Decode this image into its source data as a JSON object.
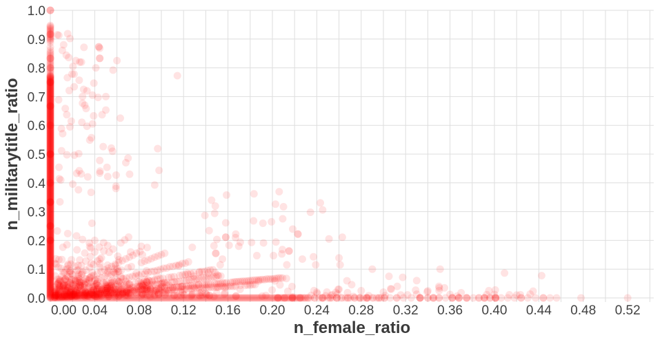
{
  "figure": {
    "background": "#ffffff"
  },
  "chart_data": {
    "type": "scatter",
    "title": "",
    "xlabel": "n_female_ratio",
    "ylabel": "n_militarytitle_ratio",
    "xlim": [
      0,
      0.545
    ],
    "ylim": [
      0,
      1.0
    ],
    "grid": true,
    "legend": false,
    "x_grid_step": 0.02,
    "x_grid_max": 0.54,
    "x_tick_values": [
      0.0,
      0.04,
      0.08,
      0.12,
      0.16,
      0.2,
      0.24,
      0.28,
      0.32,
      0.36,
      0.4,
      0.44,
      0.48,
      0.52
    ],
    "x_tick_labels": [
      "0.00",
      "0.04",
      "0.08",
      "0.12",
      "0.16",
      "0.20",
      "0.24",
      "0.28",
      "0.32",
      "0.36",
      "0.40",
      "0.44",
      "0.48",
      "0.52"
    ],
    "y_tick_values": [
      0.0,
      0.1,
      0.2,
      0.3,
      0.4,
      0.5,
      0.6,
      0.7,
      0.8,
      0.9,
      1.0
    ],
    "y_tick_labels": [
      "0.0",
      "0.1",
      "0.2",
      "0.3",
      "0.4",
      "0.5",
      "0.6",
      "0.7",
      "0.8",
      "0.9",
      "1.0"
    ],
    "colors": {
      "marker": "#ff0000",
      "grid": "#dedede",
      "tick_label": "#424242",
      "axis_title": "#3b3b3b",
      "background": "#ffffff"
    },
    "marker": {
      "opacity": 0.11,
      "radius": 5.5
    },
    "distribution": {
      "seed": 7,
      "stripes": [
        {
          "vary": "y",
          "at": 0,
          "segments": [
            {
              "from": 0.0,
              "to": 0.775,
              "step": 0.0015
            },
            {
              "from": 0.78,
              "to": 0.855,
              "step": 0.005
            },
            {
              "from": 0.895,
              "to": 0.948,
              "step": 0.0035
            }
          ]
        },
        {
          "vary": "x",
          "at": 0,
          "segments": [
            {
              "from": 0.0,
              "to": 0.23,
              "step": 0.0012
            },
            {
              "from": 0.23,
              "to": 0.3,
              "step": 0.004
            }
          ]
        }
      ],
      "rays": [
        {
          "slope": 0.25,
          "x_start": 0.004,
          "x_max": 0.185,
          "step": 0.0022
        },
        {
          "slope": 0.3333,
          "x_start": 0.004,
          "x_max": 0.21,
          "step": 0.0018
        },
        {
          "slope": 0.5,
          "x_start": 0.004,
          "x_max": 0.155,
          "step": 0.0022
        },
        {
          "slope": 0.6667,
          "x_start": 0.004,
          "x_max": 0.15,
          "step": 0.0025
        },
        {
          "slope": 1.0,
          "x_start": 0.004,
          "x_max": 0.125,
          "step": 0.0028
        },
        {
          "slope": 1.5,
          "x_start": 0.004,
          "x_max": 0.105,
          "step": 0.003
        },
        {
          "slope": 2.0,
          "x_start": 0.004,
          "x_max": 0.09,
          "step": 0.0032
        },
        {
          "slope": 3.0,
          "x_start": 0.004,
          "x_max": 0.072,
          "step": 0.0035
        },
        {
          "slope": 4.0,
          "x_start": 0.004,
          "x_max": 0.054,
          "step": 0.004
        },
        {
          "slope": 5.0,
          "x_start": 0.004,
          "x_max": 0.042,
          "step": 0.0045
        },
        {
          "slope": 7.0,
          "x_start": 0.004,
          "x_max": 0.03,
          "step": 0.005
        }
      ],
      "ray_jitter": 0.001,
      "ray_skip_prob": 0.12,
      "clouds": [
        {
          "count": 430,
          "x": {
            "type": "exp",
            "scale": 0.062,
            "min": 0.004,
            "max": 0.34
          },
          "y": {
            "type": "exp_taper",
            "scale": 0.045,
            "min": 0.004,
            "max": 0.4,
            "taper": 2.0,
            "taper_floor": 0.12
          }
        },
        {
          "count": 48,
          "x": {
            "type": "exp",
            "scale": 0.028,
            "min": 0.006,
            "max": 0.115
          },
          "y": {
            "type": "uniform",
            "min": 0.36,
            "max": 0.92
          }
        },
        {
          "count": 26,
          "x": {
            "type": "uniform",
            "min": 0.24,
            "max": 0.46
          },
          "y": {
            "type": "exp",
            "scale": 0.028,
            "min": 0.004,
            "max": 0.1
          }
        },
        {
          "count": 22,
          "x": {
            "type": "uniform",
            "min": 0.13,
            "max": 0.26
          },
          "y": {
            "type": "uniform",
            "min": 0.15,
            "max": 0.37
          }
        }
      ]
    },
    "explicit_points": {
      "stripe_beads": [
        [
          0,
          1.0,
          3
        ],
        [
          0,
          0.917,
          2
        ],
        [
          0,
          0.888,
          1
        ],
        [
          0,
          0.872,
          1
        ],
        [
          0,
          0.862,
          1
        ],
        [
          0,
          0.833,
          2
        ],
        [
          0,
          0.8,
          2
        ],
        [
          0,
          0.75,
          3
        ],
        [
          0,
          0.667,
          3
        ],
        [
          0,
          0.6,
          2
        ],
        [
          0,
          0.5,
          4
        ],
        [
          0,
          0.4,
          2
        ],
        [
          0,
          0.333,
          4
        ],
        [
          0,
          0.25,
          3
        ],
        [
          0,
          0.2,
          3
        ]
      ],
      "upper_left_points": [
        [
          0.023,
          0.825,
          1
        ],
        [
          0.0445,
          0.833,
          2
        ],
        [
          0.06,
          0.825,
          1
        ],
        [
          0.0445,
          0.868,
          1
        ],
        [
          0.0437,
          0.873,
          2
        ],
        [
          0.041,
          0.8,
          1
        ],
        [
          0.028,
          0.82,
          1
        ],
        [
          0.026,
          0.757,
          1
        ],
        [
          0.03,
          0.725,
          1
        ],
        [
          0.033,
          0.72,
          1
        ],
        [
          0.029,
          0.7,
          1
        ],
        [
          0.038,
          0.705,
          1
        ],
        [
          0.043,
          0.697,
          1
        ],
        [
          0.05,
          0.7,
          1
        ],
        [
          0.029,
          0.677,
          1
        ],
        [
          0.031,
          0.67,
          1
        ],
        [
          0.05,
          0.653,
          1
        ],
        [
          0.039,
          0.633,
          1
        ],
        [
          0.0466,
          0.637,
          1
        ],
        [
          0.063,
          0.625,
          1
        ],
        [
          0.033,
          0.597,
          1
        ],
        [
          0.038,
          0.605,
          1
        ],
        [
          0.037,
          0.557,
          1
        ],
        [
          0.0476,
          0.526,
          1
        ],
        [
          0.0549,
          0.521,
          1
        ],
        [
          0.056,
          0.51,
          1
        ],
        [
          0.07,
          0.486,
          1
        ],
        [
          0.068,
          0.47,
          1
        ],
        [
          0.0445,
          0.478,
          1
        ],
        [
          0.051,
          0.454,
          1
        ],
        [
          0.0445,
          0.434,
          1
        ],
        [
          0.0517,
          0.422,
          1
        ],
        [
          0.0714,
          0.43,
          1
        ],
        [
          0.0967,
          0.519,
          1
        ],
        [
          0.012,
          0.88,
          1
        ]
      ],
      "mid_right_points": [
        [
          0.21,
          0.317,
          1
        ],
        [
          0.148,
          0.294,
          1
        ],
        [
          0.158,
          0.261,
          1
        ],
        [
          0.143,
          0.234,
          1
        ],
        [
          0.167,
          0.222,
          1
        ],
        [
          0.223,
          0.222,
          2
        ],
        [
          0.263,
          0.211,
          1
        ],
        [
          0.251,
          0.205,
          1
        ],
        [
          0.15,
          0.203,
          1
        ],
        [
          0.158,
          0.211,
          2
        ],
        [
          0.192,
          0.191,
          1
        ],
        [
          0.161,
          0.183,
          1
        ],
        [
          0.209,
          0.168,
          1
        ],
        [
          0.215,
          0.163,
          2
        ],
        [
          0.149,
          0.155,
          2
        ],
        [
          0.186,
          0.147,
          1
        ],
        [
          0.201,
          0.147,
          1
        ],
        [
          0.227,
          0.135,
          1
        ],
        [
          0.237,
          0.143,
          1
        ],
        [
          0.213,
          0.115,
          1
        ],
        [
          0.239,
          0.115,
          1
        ],
        [
          0.26,
          0.139,
          1
        ],
        [
          0.261,
          0.115,
          1
        ],
        [
          0.155,
          0.135,
          1
        ],
        [
          0.153,
          0.115,
          1
        ],
        [
          0.29,
          0.1,
          1
        ],
        [
          0.305,
          0.075,
          1
        ],
        [
          0.33,
          0.06,
          1
        ],
        [
          0.35,
          0.04,
          1
        ]
      ],
      "near_axis_points": [
        [
          0.36,
          0.012,
          1
        ],
        [
          0.395,
          0.025,
          1
        ],
        [
          0.4,
          0.012,
          1
        ],
        [
          0.42,
          0.01,
          1
        ],
        [
          0.3,
          0.02,
          1
        ],
        [
          0.33,
          0.013,
          1
        ],
        [
          0.28,
          0.025,
          1
        ],
        [
          0.26,
          0.03,
          1
        ],
        [
          0.24,
          0.02,
          1
        ],
        [
          0.355,
          0.035,
          1
        ],
        [
          0.37,
          0.018,
          1
        ]
      ],
      "y0_tail": [
        [
          0.205,
          0,
          3
        ],
        [
          0.211,
          0,
          2
        ],
        [
          0.218,
          0,
          3
        ],
        [
          0.225,
          0,
          2
        ],
        [
          0.232,
          0,
          2
        ],
        [
          0.238,
          0,
          1
        ],
        [
          0.245,
          0,
          3
        ],
        [
          0.252,
          0,
          2
        ],
        [
          0.258,
          0,
          2
        ],
        [
          0.263,
          0,
          1
        ],
        [
          0.268,
          0,
          2
        ],
        [
          0.274,
          0,
          1
        ],
        [
          0.279,
          0,
          2
        ],
        [
          0.285,
          0,
          3
        ],
        [
          0.291,
          0,
          1
        ],
        [
          0.296,
          0,
          2
        ],
        [
          0.301,
          0,
          2
        ],
        [
          0.306,
          0,
          1
        ],
        [
          0.312,
          0,
          2
        ],
        [
          0.318,
          0,
          1
        ],
        [
          0.325,
          0,
          1
        ],
        [
          0.333,
          0,
          4
        ],
        [
          0.34,
          0,
          2
        ],
        [
          0.345,
          0,
          3
        ],
        [
          0.35,
          0,
          2
        ],
        [
          0.356,
          0,
          1
        ],
        [
          0.362,
          0,
          3
        ],
        [
          0.368,
          0,
          3
        ],
        [
          0.375,
          0,
          3
        ],
        [
          0.381,
          0,
          1
        ],
        [
          0.386,
          0,
          2
        ],
        [
          0.391,
          0,
          3
        ],
        [
          0.396,
          0,
          2
        ],
        [
          0.401,
          0,
          4
        ],
        [
          0.406,
          0,
          1
        ],
        [
          0.412,
          0,
          1
        ],
        [
          0.418,
          0,
          1
        ],
        [
          0.424,
          0,
          2
        ],
        [
          0.43,
          0,
          1
        ],
        [
          0.437,
          0,
          1
        ],
        [
          0.444,
          0,
          2
        ],
        [
          0.45,
          0,
          1
        ],
        [
          0.456,
          0,
          1
        ],
        [
          0.478,
          0,
          1
        ],
        [
          0.52,
          0,
          1
        ]
      ]
    }
  }
}
